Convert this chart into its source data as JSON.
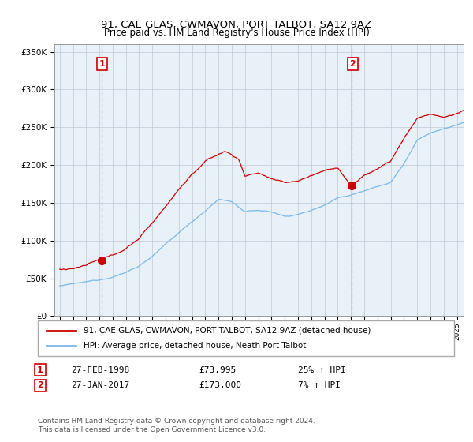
{
  "title": "91, CAE GLAS, CWMAVON, PORT TALBOT, SA12 9AZ",
  "subtitle": "Price paid vs. HM Land Registry's House Price Index (HPI)",
  "ylim": [
    0,
    360000
  ],
  "yticks": [
    0,
    50000,
    100000,
    150000,
    200000,
    250000,
    300000,
    350000
  ],
  "ytick_labels": [
    "£0",
    "£50K",
    "£100K",
    "£150K",
    "£200K",
    "£250K",
    "£300K",
    "£350K"
  ],
  "xlim_start": 1994.6,
  "xlim_end": 2025.5,
  "legend_line1": "91, CAE GLAS, CWMAVON, PORT TALBOT, SA12 9AZ (detached house)",
  "legend_line2": "HPI: Average price, detached house, Neath Port Talbot",
  "point1_date": "27-FEB-1998",
  "point1_price": "£73,995",
  "point1_hpi": "25% ↑ HPI",
  "point1_x": 1998.15,
  "point1_y": 73995,
  "point2_date": "27-JAN-2017",
  "point2_price": "£173,000",
  "point2_hpi": "7% ↑ HPI",
  "point2_x": 2017.07,
  "point2_y": 173000,
  "footer": "Contains HM Land Registry data © Crown copyright and database right 2024.\nThis data is licensed under the Open Government Licence v3.0.",
  "hpi_color": "#7ab8e8",
  "price_color": "#cc0000",
  "chart_bg": "#e8f0f8",
  "background_color": "#ffffff",
  "grid_color": "#c0c8d8"
}
